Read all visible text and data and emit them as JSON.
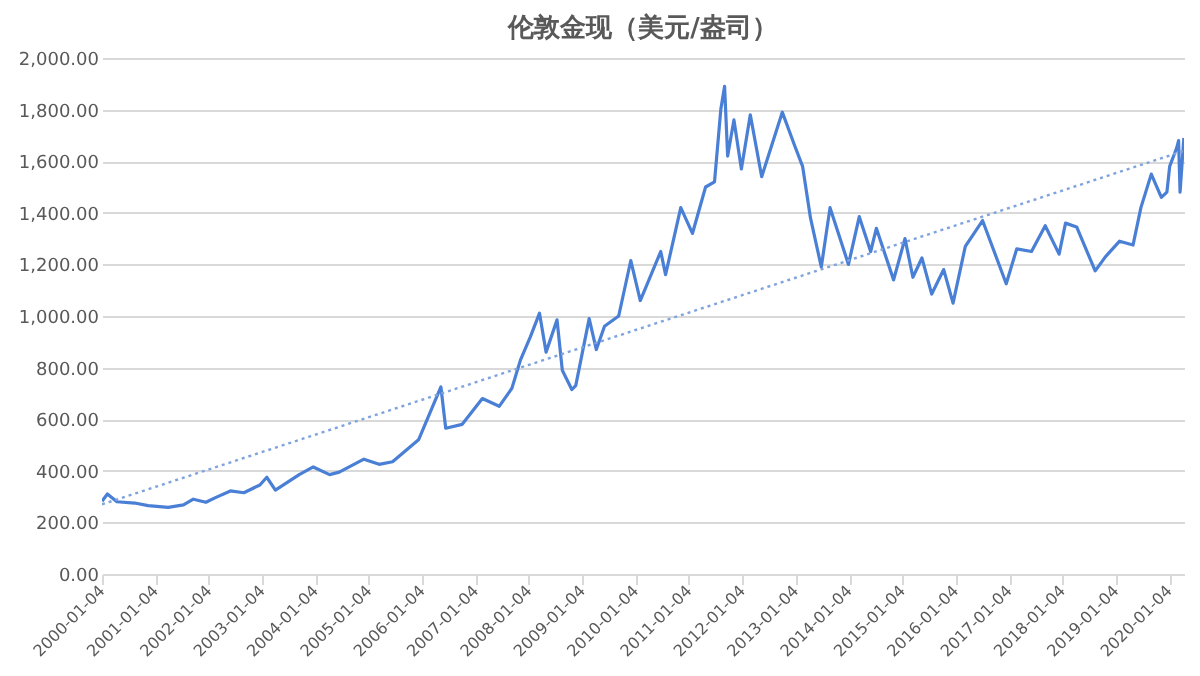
{
  "chart_data": {
    "type": "line",
    "title": "伦敦金现（美元/盎司）",
    "xlim": [
      "2000-01-04",
      "2020-04-15"
    ],
    "xticks": [
      "2000-01-04",
      "2001-01-04",
      "2002-01-04",
      "2003-01-04",
      "2004-01-04",
      "2005-01-04",
      "2006-01-04",
      "2007-01-04",
      "2008-01-04",
      "2009-01-04",
      "2010-01-04",
      "2011-01-04",
      "2012-01-04",
      "2013-01-04",
      "2014-01-04",
      "2015-01-04",
      "2016-01-04",
      "2017-01-04",
      "2018-01-04",
      "2019-01-04",
      "2020-01-04"
    ],
    "ylim": [
      0,
      2000
    ],
    "yticks": [
      {
        "value": 0,
        "label": "0.00"
      },
      {
        "value": 200,
        "label": "200.00"
      },
      {
        "value": 400,
        "label": "400.00"
      },
      {
        "value": 600,
        "label": "600.00"
      },
      {
        "value": 800,
        "label": "800.00"
      },
      {
        "value": 1000,
        "label": "1,000.00"
      },
      {
        "value": 1200,
        "label": "1,200.00"
      },
      {
        "value": 1400,
        "label": "1,400.00"
      },
      {
        "value": 1600,
        "label": "1,600.00"
      },
      {
        "value": 1800,
        "label": "1,800.00"
      },
      {
        "value": 2000,
        "label": "2,000.00"
      }
    ],
    "grid": "y",
    "series": [
      {
        "color": "#4a7fd6",
        "line_style": "solid",
        "x": [
          "2000-01-04",
          "2000-02-10",
          "2000-04-15",
          "2000-08-15",
          "2000-11-15",
          "2001-04-01",
          "2001-07-15",
          "2001-09-20",
          "2001-12-15",
          "2002-02-15",
          "2002-06-01",
          "2002-09-01",
          "2002-12-20",
          "2003-02-05",
          "2003-04-05",
          "2003-09-15",
          "2003-12-20",
          "2004-04-10",
          "2004-06-15",
          "2004-12-01",
          "2005-03-15",
          "2005-06-15",
          "2005-12-10",
          "2006-05-12",
          "2006-06-14",
          "2006-10-05",
          "2007-02-20",
          "2007-06-15",
          "2007-09-10",
          "2007-11-08",
          "2008-01-15",
          "2008-03-17",
          "2008-05-01",
          "2008-07-15",
          "2008-08-20",
          "2008-10-24",
          "2008-11-20",
          "2009-02-20",
          "2009-04-10",
          "2009-06-05",
          "2009-09-10",
          "2009-12-02",
          "2010-02-05",
          "2010-06-25",
          "2010-07-28",
          "2010-11-09",
          "2011-01-28",
          "2011-04-28",
          "2011-06-28",
          "2011-08-10",
          "2011-09-05",
          "2011-09-26",
          "2011-11-08",
          "2011-12-29",
          "2012-02-28",
          "2012-05-16",
          "2012-10-04",
          "2012-12-28",
          "2013-02-20",
          "2013-04-15",
          "2013-06-28",
          "2013-08-27",
          "2013-12-31",
          "2014-03-15",
          "2014-06-01",
          "2014-07-10",
          "2014-11-05",
          "2015-01-22",
          "2015-03-17",
          "2015-05-18",
          "2015-07-24",
          "2015-10-14",
          "2015-12-17",
          "2016-03-10",
          "2016-07-06",
          "2016-12-15",
          "2017-02-25",
          "2017-06-06",
          "2017-09-08",
          "2017-12-12",
          "2018-01-25",
          "2018-04-11",
          "2018-08-16",
          "2018-10-26",
          "2019-01-30",
          "2019-05-02",
          "2019-06-25",
          "2019-09-04",
          "2019-11-12",
          "2019-12-20",
          "2020-01-08",
          "2020-02-24",
          "2020-03-09",
          "2020-03-19",
          "2020-04-14"
        ],
        "values": [
          282,
          310,
          280,
          275,
          265,
          258,
          268,
          290,
          278,
          295,
          322,
          315,
          345,
          375,
          325,
          385,
          415,
          385,
          395,
          445,
          425,
          435,
          520,
          725,
          565,
          580,
          680,
          650,
          720,
          830,
          920,
          1011,
          860,
          985,
          790,
          715,
          730,
          990,
          870,
          960,
          1000,
          1215,
          1060,
          1250,
          1160,
          1420,
          1320,
          1500,
          1520,
          1800,
          1890,
          1620,
          1760,
          1570,
          1780,
          1540,
          1790,
          1660,
          1580,
          1380,
          1190,
          1420,
          1200,
          1385,
          1250,
          1340,
          1140,
          1300,
          1150,
          1225,
          1085,
          1180,
          1050,
          1270,
          1370,
          1125,
          1260,
          1250,
          1350,
          1240,
          1360,
          1345,
          1175,
          1230,
          1290,
          1275,
          1420,
          1550,
          1460,
          1480,
          1580,
          1650,
          1680,
          1480,
          1690
        ]
      },
      {
        "color": "#7fa3dc",
        "line_style": "dotted",
        "x": [
          "2000-01-04",
          "2020-04-14"
        ],
        "values": [
          270,
          1640
        ]
      }
    ]
  }
}
